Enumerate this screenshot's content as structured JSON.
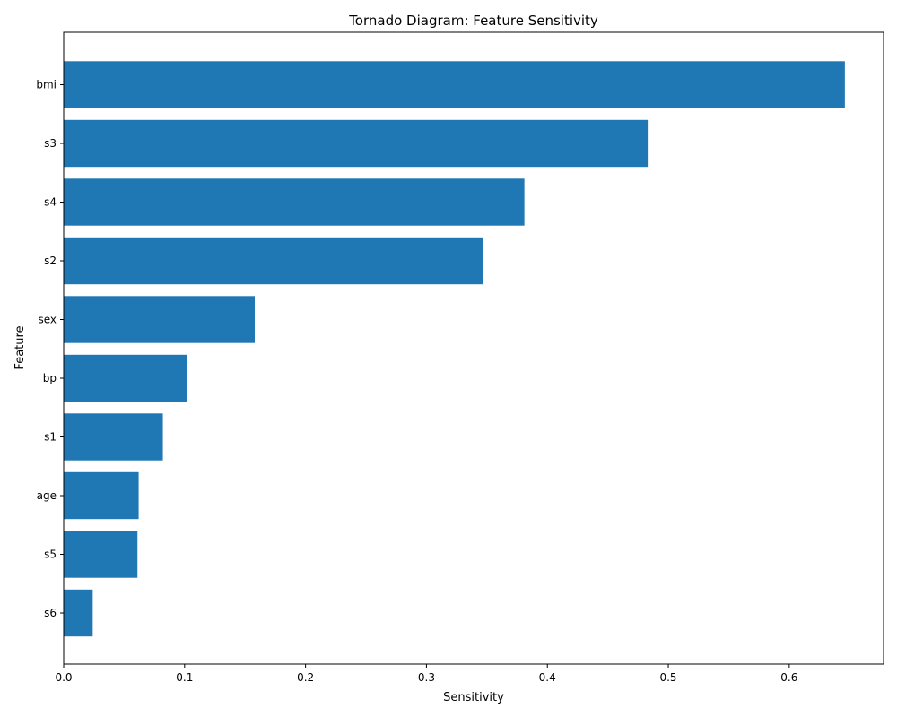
{
  "chart_data": {
    "type": "bar",
    "orientation": "horizontal",
    "title": "Tornado Diagram: Feature Sensitivity",
    "xlabel": "Sensitivity",
    "ylabel": "Feature",
    "categories": [
      "bmi",
      "s3",
      "s4",
      "s2",
      "sex",
      "bp",
      "s1",
      "age",
      "s5",
      "s6"
    ],
    "values": [
      0.646,
      0.483,
      0.381,
      0.347,
      0.158,
      0.102,
      0.082,
      0.062,
      0.061,
      0.024
    ],
    "xlim": [
      0,
      0.678
    ],
    "xticks": [
      0.0,
      0.1,
      0.2,
      0.3,
      0.4,
      0.5,
      0.6
    ],
    "xtick_labels": [
      "0.0",
      "0.1",
      "0.2",
      "0.3",
      "0.4",
      "0.5",
      "0.6"
    ],
    "bar_color": "#1f77b4",
    "grid": false,
    "legend": null
  }
}
